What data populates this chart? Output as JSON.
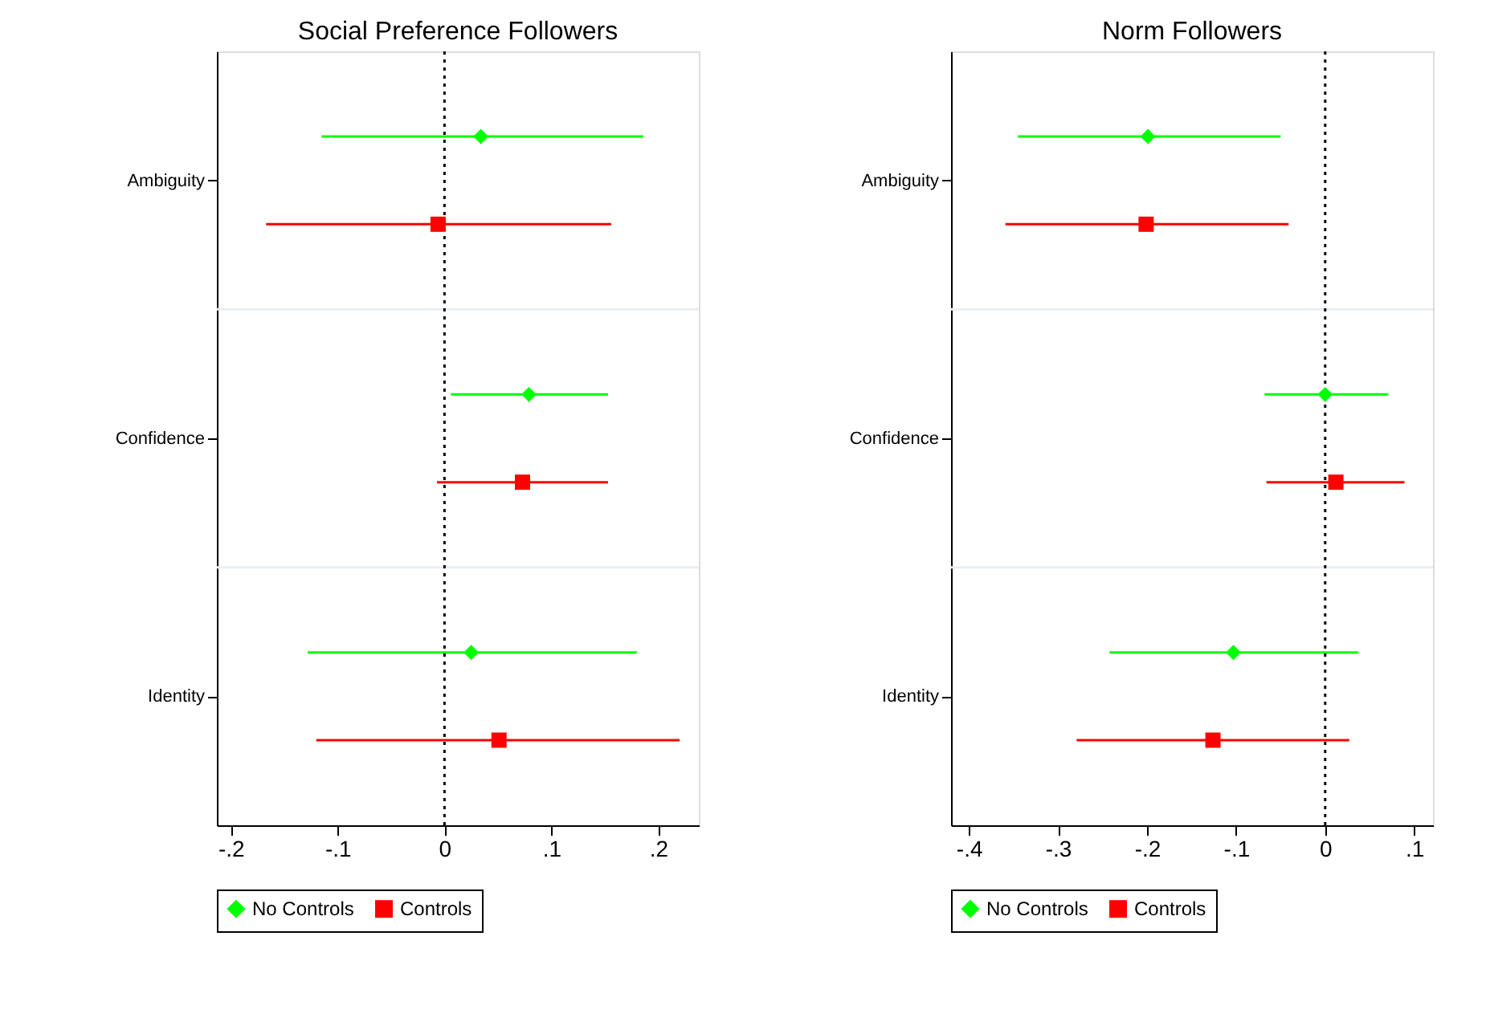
{
  "chart_data": [
    {
      "type": "scatter",
      "title": "Social Preference Followers",
      "categories": [
        "Ambiguity",
        "Confidence",
        "Identity"
      ],
      "xlim": [
        -0.213,
        0.238
      ],
      "xticks": [
        {
          "value": -0.2,
          "label": "-.2"
        },
        {
          "value": -0.1,
          "label": "-.1"
        },
        {
          "value": 0,
          "label": "0"
        },
        {
          "value": 0.1,
          "label": ".1"
        },
        {
          "value": 0.2,
          "label": ".2"
        }
      ],
      "grid": "y",
      "legend": "bottom",
      "orientation": "horizontal",
      "series": [
        {
          "name": "No Controls",
          "color": "#00ff00",
          "marker": "diamond",
          "values": [
            0.034,
            0.079,
            0.025
          ],
          "errors": [
            [
              -0.115,
              0.186
            ],
            [
              0.006,
              0.153
            ],
            [
              -0.128,
              0.18
            ]
          ]
        },
        {
          "name": "Controls",
          "color": "#ff0000",
          "marker": "square",
          "values": [
            -0.006,
            0.073,
            0.051
          ],
          "errors": [
            [
              -0.167,
              0.156
            ],
            [
              -0.007,
              0.153
            ],
            [
              -0.12,
              0.22
            ]
          ]
        }
      ],
      "ref_lines": [
        {
          "axis": "x",
          "value": 0,
          "line_style": "dotted",
          "color": "#000000"
        }
      ]
    },
    {
      "type": "scatter",
      "title": "Norm Followers",
      "categories": [
        "Ambiguity",
        "Confidence",
        "Identity"
      ],
      "xlim": [
        -0.42,
        0.121
      ],
      "xticks": [
        {
          "value": -0.4,
          "label": "-.4"
        },
        {
          "value": -0.3,
          "label": "-.3"
        },
        {
          "value": -0.2,
          "label": "-.2"
        },
        {
          "value": -0.1,
          "label": "-.1"
        },
        {
          "value": 0,
          "label": "0"
        },
        {
          "value": 0.1,
          "label": ".1"
        }
      ],
      "grid": "y",
      "legend": "bottom",
      "orientation": "horizontal",
      "series": [
        {
          "name": "No Controls",
          "color": "#00ff00",
          "marker": "diamond",
          "values": [
            -0.199,
            0.0,
            -0.103
          ],
          "errors": [
            [
              -0.345,
              -0.05
            ],
            [
              -0.068,
              0.071
            ],
            [
              -0.242,
              0.037
            ]
          ]
        },
        {
          "name": "Controls",
          "color": "#ff0000",
          "marker": "square",
          "values": [
            -0.201,
            0.012,
            -0.126
          ],
          "errors": [
            [
              -0.359,
              -0.041
            ],
            [
              -0.066,
              0.089
            ],
            [
              -0.279,
              0.027
            ]
          ]
        }
      ],
      "ref_lines": [
        {
          "axis": "x",
          "value": 0,
          "line_style": "dotted",
          "color": "#000000"
        }
      ]
    }
  ]
}
